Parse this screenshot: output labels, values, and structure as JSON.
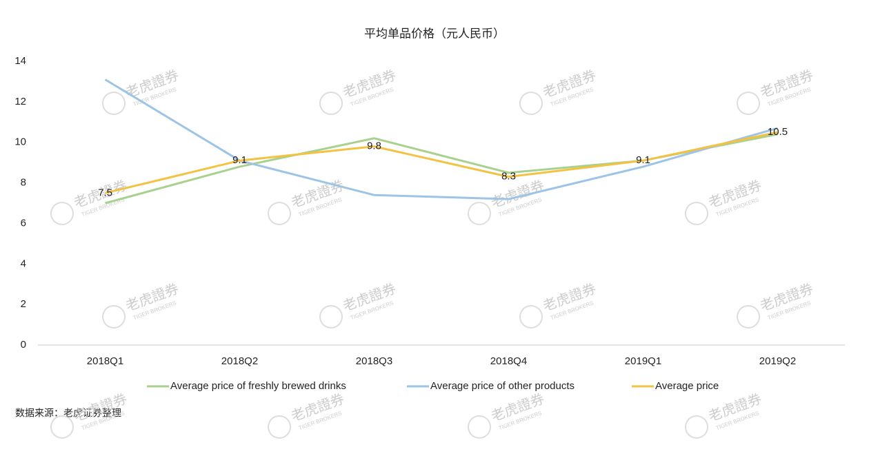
{
  "chart_data": {
    "type": "line",
    "title": "平均单品价格（元人民币）",
    "categories": [
      "2018Q1",
      "2018Q2",
      "2018Q3",
      "2018Q4",
      "2019Q1",
      "2019Q2"
    ],
    "series": [
      {
        "name": "Average price of freshly brewed drinks",
        "color": "#a9d18e",
        "values": [
          7.0,
          8.8,
          10.2,
          8.5,
          9.1,
          10.4
        ]
      },
      {
        "name": "Average price of other products",
        "color": "#9dc3e6",
        "values": [
          13.1,
          9.1,
          7.4,
          7.2,
          8.8,
          10.7
        ]
      },
      {
        "name": "Average price",
        "color": "#f4c242",
        "values": [
          7.5,
          9.1,
          9.8,
          8.3,
          9.1,
          10.5
        ],
        "show_labels": true
      }
    ],
    "ylim": [
      0,
      14
    ],
    "yticks": [
      0,
      2,
      4,
      6,
      8,
      10,
      12,
      14
    ],
    "legend": "bottom",
    "source": "数据来源：老虎证券整理",
    "watermark": {
      "cn": "老虎證券",
      "en": "TIGER BROKERS"
    }
  }
}
